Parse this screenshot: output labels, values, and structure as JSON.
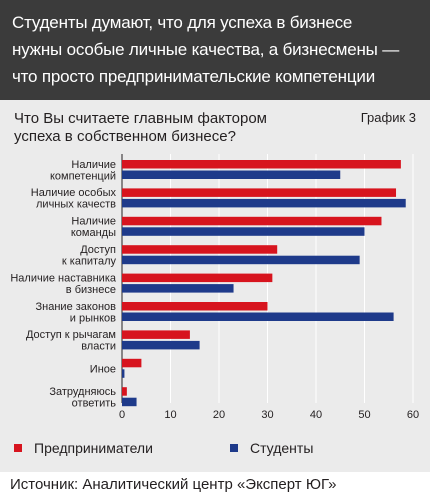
{
  "header": {
    "lines": [
      "Студенты думают, что для успеха в бизнесе",
      "нужны особые личные качества, а бизнесмены —",
      "что просто предпринимательские компетенции"
    ]
  },
  "chart_header": {
    "question_lines": [
      "Что Вы считаете главным фактором",
      "успеха в собственном бизнесе?"
    ],
    "graph_label": "График 3"
  },
  "source": "Источник: Аналитический центр «Эксперт ЮГ»",
  "colors": {
    "entrepreneurs": "#d7141e",
    "students": "#1e3a8a",
    "header_bg": "#3b3b3b",
    "plot_bg": "#ebebeb"
  },
  "chart_data": {
    "type": "bar",
    "orientation": "horizontal",
    "categories": [
      [
        "Наличие",
        "компетенций"
      ],
      [
        "Наличие особых",
        "личных качеств"
      ],
      [
        "Наличие",
        "команды"
      ],
      [
        "Доступ",
        "к капиталу"
      ],
      [
        "Наличие наставника",
        "в бизнесе"
      ],
      [
        "Знание законов",
        "и рынков"
      ],
      [
        "Доступ к рычагам",
        "власти"
      ],
      [
        "Иное"
      ],
      [
        "Затрудняюсь",
        "ответить"
      ]
    ],
    "series": [
      {
        "name": "Предприниматели",
        "values": [
          57.5,
          56.5,
          53.5,
          32,
          31,
          30,
          14,
          4,
          1
        ]
      },
      {
        "name": "Студенты",
        "values": [
          45,
          58.5,
          50,
          49,
          23,
          56,
          16,
          0.5,
          3
        ]
      }
    ],
    "xlim": [
      0,
      60
    ],
    "xticks": [
      "0",
      "10",
      "20",
      "30",
      "40",
      "50",
      "60"
    ],
    "grid": true,
    "legend_position": "bottom"
  }
}
